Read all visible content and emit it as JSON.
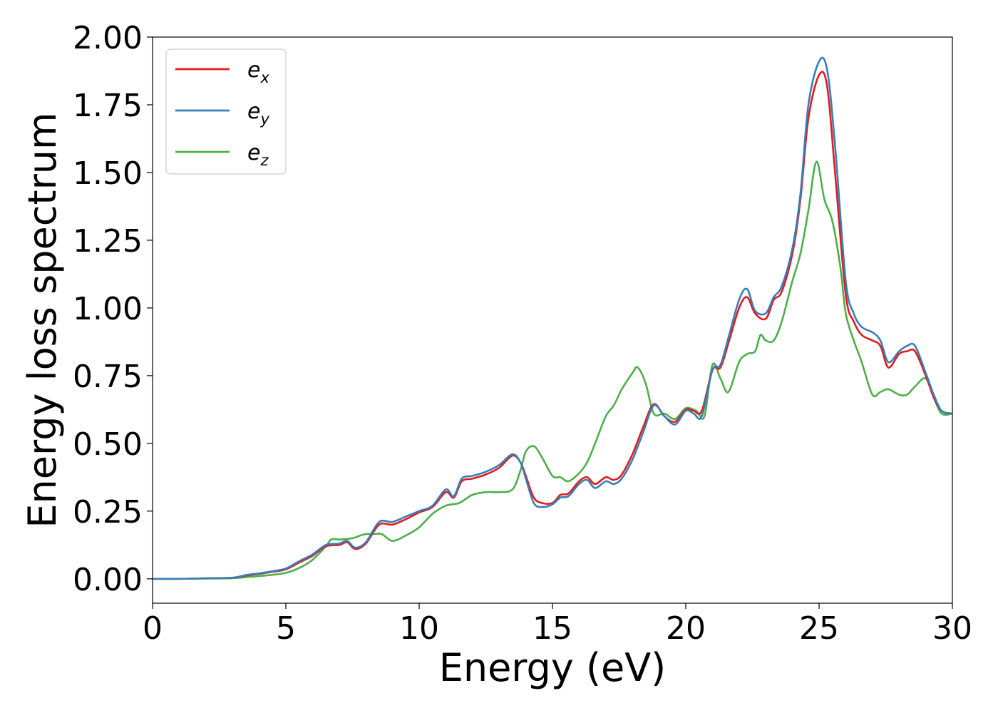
{
  "chart_data": {
    "type": "line",
    "title": "",
    "xlabel": "Energy (eV)",
    "ylabel": "Energy loss spectrum",
    "xlim": [
      0,
      30
    ],
    "ylim": [
      -0.09,
      2.0
    ],
    "xticks": [
      0,
      5,
      10,
      15,
      20,
      25,
      30
    ],
    "xtick_labels": [
      "0",
      "5",
      "10",
      "15",
      "20",
      "25",
      "30"
    ],
    "yticks": [
      0.0,
      0.25,
      0.5,
      0.75,
      1.0,
      1.25,
      1.5,
      1.75,
      2.0
    ],
    "ytick_labels": [
      "0.00",
      "0.25",
      "0.50",
      "0.75",
      "1.00",
      "1.25",
      "1.50",
      "1.75",
      "2.00"
    ],
    "grid": false,
    "legend": "top-left",
    "series": [
      {
        "name": "e",
        "sub": "x",
        "color": "#e41a1c",
        "x": [
          0,
          1,
          2,
          3,
          3.5,
          4,
          4.5,
          5,
          5.5,
          6,
          6.5,
          7,
          7.3,
          7.6,
          8,
          8.5,
          9,
          9.5,
          10,
          10.5,
          11,
          11.3,
          11.6,
          12,
          12.5,
          13,
          13.5,
          13.8,
          14,
          14.3,
          14.6,
          15,
          15.3,
          15.6,
          16,
          16.3,
          16.6,
          17,
          17.3,
          17.6,
          18,
          18.4,
          18.8,
          19.2,
          19.6,
          20,
          20.3,
          20.6,
          21,
          21.3,
          21.6,
          22,
          22.3,
          22.6,
          23,
          23.3,
          23.6,
          24,
          24.3,
          24.6,
          25,
          25.3,
          25.6,
          26,
          26.3,
          26.6,
          27,
          27.3,
          27.6,
          28,
          28.3,
          28.6,
          29,
          29.3,
          29.6,
          30
        ],
        "y": [
          0.0,
          0.0,
          0.002,
          0.004,
          0.012,
          0.018,
          0.026,
          0.035,
          0.06,
          0.085,
          0.12,
          0.125,
          0.135,
          0.11,
          0.13,
          0.2,
          0.2,
          0.22,
          0.245,
          0.265,
          0.32,
          0.3,
          0.36,
          0.37,
          0.385,
          0.41,
          0.455,
          0.43,
          0.38,
          0.3,
          0.28,
          0.28,
          0.31,
          0.315,
          0.36,
          0.375,
          0.35,
          0.375,
          0.365,
          0.385,
          0.46,
          0.56,
          0.645,
          0.6,
          0.58,
          0.625,
          0.62,
          0.62,
          0.77,
          0.78,
          0.87,
          1.0,
          1.04,
          0.98,
          0.96,
          1.03,
          1.06,
          1.2,
          1.4,
          1.7,
          1.86,
          1.82,
          1.5,
          1.05,
          0.95,
          0.9,
          0.88,
          0.86,
          0.78,
          0.83,
          0.84,
          0.84,
          0.75,
          0.67,
          0.62,
          0.61
        ]
      },
      {
        "name": "e",
        "sub": "y",
        "color": "#377eb8",
        "x": [
          0,
          1,
          2,
          3,
          3.5,
          4,
          4.5,
          5,
          5.5,
          6,
          6.5,
          7,
          7.3,
          7.6,
          8,
          8.5,
          9,
          9.5,
          10,
          10.5,
          11,
          11.3,
          11.6,
          12,
          12.5,
          13,
          13.5,
          13.8,
          14,
          14.3,
          14.6,
          15,
          15.3,
          15.6,
          16,
          16.3,
          16.6,
          17,
          17.3,
          17.6,
          18,
          18.4,
          18.8,
          19.2,
          19.6,
          20,
          20.3,
          20.6,
          21,
          21.3,
          21.6,
          22,
          22.3,
          22.6,
          23,
          23.3,
          23.6,
          24,
          24.3,
          24.6,
          25,
          25.3,
          25.6,
          26,
          26.3,
          26.6,
          27,
          27.3,
          27.6,
          28,
          28.3,
          28.6,
          29,
          29.3,
          29.6,
          30
        ],
        "y": [
          0.0,
          0.0,
          0.002,
          0.004,
          0.014,
          0.02,
          0.028,
          0.038,
          0.065,
          0.09,
          0.125,
          0.13,
          0.14,
          0.115,
          0.135,
          0.21,
          0.21,
          0.23,
          0.25,
          0.27,
          0.33,
          0.305,
          0.37,
          0.38,
          0.395,
          0.42,
          0.46,
          0.43,
          0.37,
          0.28,
          0.265,
          0.275,
          0.3,
          0.305,
          0.35,
          0.365,
          0.335,
          0.36,
          0.35,
          0.37,
          0.44,
          0.54,
          0.64,
          0.6,
          0.57,
          0.62,
          0.61,
          0.6,
          0.77,
          0.79,
          0.89,
          1.03,
          1.07,
          0.99,
          0.98,
          1.04,
          1.08,
          1.22,
          1.42,
          1.75,
          1.91,
          1.88,
          1.6,
          1.1,
          0.98,
          0.93,
          0.91,
          0.88,
          0.8,
          0.84,
          0.86,
          0.86,
          0.76,
          0.68,
          0.62,
          0.61
        ]
      },
      {
        "name": "e",
        "sub": "z",
        "color": "#4daf4a",
        "x": [
          0,
          1,
          2,
          3,
          3.5,
          4,
          4.5,
          5,
          5.5,
          6,
          6.5,
          6.7,
          7,
          7.5,
          7.8,
          8,
          8.3,
          8.6,
          9,
          9.5,
          10,
          10.5,
          11,
          11.5,
          12,
          12.5,
          13,
          13.5,
          13.8,
          14,
          14.3,
          14.6,
          15,
          15.3,
          15.6,
          16,
          16.3,
          16.6,
          17,
          17.3,
          17.6,
          18,
          18.2,
          18.5,
          18.8,
          19.2,
          19.6,
          20,
          20.4,
          20.7,
          21,
          21.3,
          21.6,
          22,
          22.3,
          22.6,
          22.8,
          23,
          23.3,
          23.6,
          24,
          24.3,
          24.6,
          24.9,
          25.2,
          25.5,
          25.8,
          26,
          26.3,
          26.6,
          27,
          27.3,
          27.6,
          28,
          28.3,
          28.6,
          29,
          29.3,
          29.6,
          30
        ],
        "y": [
          0.0,
          0.0,
          0.001,
          0.002,
          0.006,
          0.01,
          0.015,
          0.022,
          0.04,
          0.07,
          0.12,
          0.145,
          0.145,
          0.15,
          0.16,
          0.165,
          0.165,
          0.165,
          0.14,
          0.16,
          0.19,
          0.24,
          0.27,
          0.28,
          0.31,
          0.32,
          0.32,
          0.33,
          0.4,
          0.47,
          0.49,
          0.45,
          0.38,
          0.375,
          0.36,
          0.39,
          0.43,
          0.5,
          0.6,
          0.64,
          0.7,
          0.76,
          0.78,
          0.72,
          0.61,
          0.61,
          0.59,
          0.63,
          0.62,
          0.6,
          0.79,
          0.74,
          0.69,
          0.8,
          0.83,
          0.84,
          0.9,
          0.88,
          0.88,
          0.95,
          1.1,
          1.2,
          1.36,
          1.54,
          1.4,
          1.32,
          1.15,
          0.98,
          0.88,
          0.8,
          0.68,
          0.69,
          0.7,
          0.68,
          0.68,
          0.71,
          0.74,
          0.67,
          0.61,
          0.61
        ]
      }
    ]
  }
}
